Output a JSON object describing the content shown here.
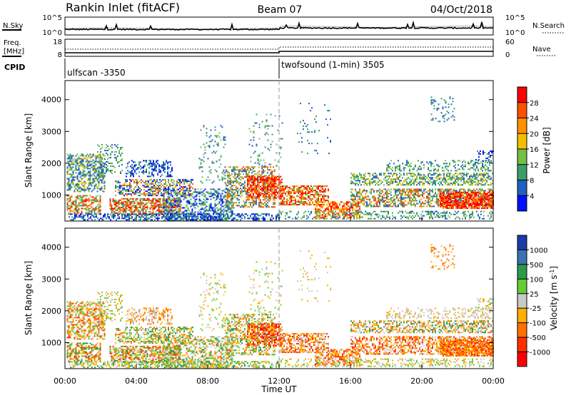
{
  "header": {
    "station": "Rankin Inlet (fitACF)",
    "beam": "Beam 07",
    "date": "04/Oct/2018"
  },
  "noise_panel": {
    "left_label": "N.Sky",
    "right_label": "N.Search",
    "left_ticks": [
      "10^5",
      "10^0"
    ],
    "right_ticks": [
      "10^5",
      "10^0"
    ]
  },
  "freq_panel": {
    "left_label_1": "Freq.",
    "left_label_2": "[MHz]",
    "right_label": "Nave",
    "left_ticks": [
      "18",
      "8"
    ],
    "right_ticks": [
      "60",
      "0"
    ]
  },
  "cpid": {
    "label": "CPID",
    "segments": [
      {
        "name": "ulfscan -3350",
        "start_hour": 0
      },
      {
        "name": "twofsound (1-min) 3505",
        "start_hour": 12
      }
    ]
  },
  "chart_data": [
    {
      "type": "heatmap",
      "parameter": "Power",
      "ylabel": "Slant Range [km]",
      "ylim": [
        180,
        4600
      ],
      "yticks": [
        1000,
        2000,
        3000,
        4000
      ],
      "xlim": [
        0,
        24
      ],
      "colorbar": {
        "label": "Power [dB]",
        "ticks": [
          "28",
          "24",
          "20",
          "16",
          "12",
          "8",
          "4"
        ],
        "colors": [
          "#ff0000",
          "#ff5000",
          "#ff9000",
          "#f0c000",
          "#74c044",
          "#3a9e6a",
          "#2060c0",
          "#0010ff"
        ]
      }
    },
    {
      "type": "heatmap",
      "parameter": "Velocity",
      "ylabel": "Slant Range [km]",
      "ylim": [
        180,
        4600
      ],
      "yticks": [
        1000,
        2000,
        3000,
        4000
      ],
      "xlim": [
        0,
        24
      ],
      "colorbar": {
        "label": "Velocity [m s",
        "label_sup": "-1",
        "label_end": "]",
        "ticks": [
          "1000",
          "500",
          "100",
          "25",
          "-25",
          "-100",
          "-500",
          "-1000"
        ],
        "colors": [
          "#1a3aa8",
          "#3a72b0",
          "#2a9a4a",
          "#66cc33",
          "#c8c8c8",
          "#ffb000",
          "#ff7000",
          "#ff3000",
          "#ff0000"
        ]
      }
    }
  ],
  "x_axis": {
    "label": "Time UT",
    "ticks": [
      "00:00",
      "04:00",
      "08:00",
      "12:00",
      "16:00",
      "20:00",
      "00:00"
    ]
  },
  "colors": {
    "frame": "#000000",
    "marker_line": "#9a9a9a"
  }
}
